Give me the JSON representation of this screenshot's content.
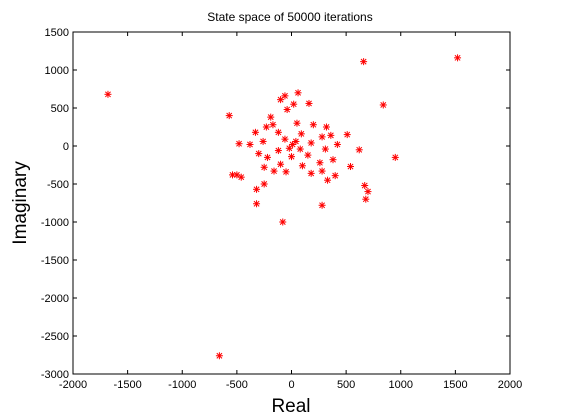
{
  "chart_data": {
    "type": "scatter",
    "title": "State space of 50000 iterations",
    "xlabel": "Real",
    "ylabel": "Imaginary",
    "xlim": [
      -2000,
      2000
    ],
    "ylim": [
      -3000,
      1500
    ],
    "xticks": [
      -2000,
      -1500,
      -1000,
      -500,
      0,
      500,
      1000,
      1500,
      2000
    ],
    "yticks": [
      -3000,
      -2500,
      -2000,
      -1500,
      -1000,
      -500,
      0,
      500,
      1000,
      1500
    ],
    "xtick_labels": [
      "-2000",
      "-1500",
      "-1000",
      "-500",
      "0",
      "500",
      "1000",
      "1500",
      "2000"
    ],
    "ytick_labels": [
      "-3000",
      "-2500",
      "-2000",
      "-1500",
      "-1000",
      "-500",
      "0",
      "500",
      "1000",
      "1500"
    ],
    "grid": false,
    "marker": "*",
    "marker_color": "#ff0000",
    "series": [
      {
        "points": [
          [
            -1680,
            680
          ],
          [
            1520,
            1160
          ],
          [
            660,
            1110
          ],
          [
            840,
            540
          ],
          [
            -570,
            400
          ],
          [
            -660,
            -2760
          ],
          [
            -80,
            -1000
          ],
          [
            950,
            -150
          ],
          [
            280,
            -780
          ],
          [
            -320,
            -760
          ],
          [
            680,
            -700
          ],
          [
            700,
            -600
          ],
          [
            670,
            -520
          ],
          [
            540,
            -270
          ],
          [
            620,
            -50
          ],
          [
            510,
            150
          ],
          [
            -540,
            -380
          ],
          [
            -500,
            -380
          ],
          [
            -460,
            -410
          ],
          [
            -320,
            -570
          ],
          [
            -250,
            -500
          ],
          [
            -480,
            30
          ],
          [
            330,
            -450
          ],
          [
            400,
            -390
          ],
          [
            60,
            700
          ],
          [
            -60,
            660
          ],
          [
            -100,
            610
          ],
          [
            20,
            550
          ],
          [
            160,
            560
          ],
          [
            -40,
            480
          ],
          [
            -190,
            380
          ],
          [
            -170,
            280
          ],
          [
            320,
            250
          ],
          [
            360,
            140
          ],
          [
            420,
            20
          ],
          [
            380,
            -180
          ],
          [
            280,
            -330
          ],
          [
            180,
            -360
          ],
          [
            -50,
            -340
          ],
          [
            -160,
            -330
          ],
          [
            -250,
            -280
          ],
          [
            -300,
            -100
          ],
          [
            -380,
            20
          ],
          [
            -330,
            180
          ],
          [
            -230,
            250
          ],
          [
            50,
            300
          ],
          [
            200,
            280
          ],
          [
            280,
            120
          ],
          [
            310,
            -40
          ],
          [
            260,
            -220
          ],
          [
            100,
            -260
          ],
          [
            -100,
            -240
          ],
          [
            -220,
            -150
          ],
          [
            -260,
            60
          ],
          [
            -120,
            180
          ],
          [
            90,
            160
          ],
          [
            180,
            40
          ],
          [
            150,
            -120
          ],
          [
            0,
            -140
          ],
          [
            -120,
            -60
          ],
          [
            -60,
            90
          ],
          [
            40,
            60
          ],
          [
            80,
            -40
          ],
          [
            -20,
            -30
          ],
          [
            10,
            20
          ]
        ]
      }
    ]
  }
}
